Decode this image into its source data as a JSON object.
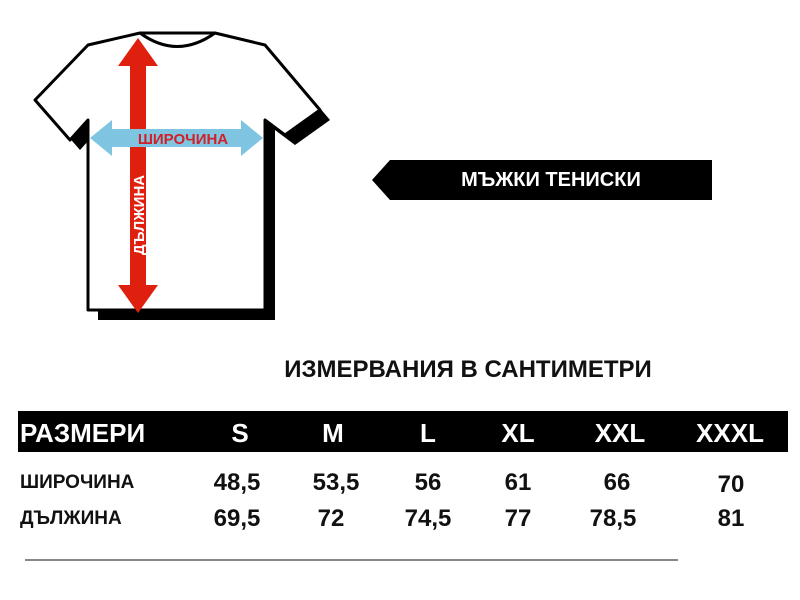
{
  "diagram": {
    "width_label": "ШИРОЧИНА",
    "length_label": "ДЪЛЖИНА",
    "colors": {
      "width_arrow": "#7fc4e0",
      "length_arrow": "#e0200f",
      "width_text": "#d0202a"
    }
  },
  "banner": {
    "label": "МЪЖКИ ТЕНИСКИ"
  },
  "table": {
    "title": "ИЗМЕРВАНИЯ В САНТИМЕТРИ",
    "header_label": "РАЗМЕРИ",
    "sizes": [
      "S",
      "M",
      "L",
      "XL",
      "XXL",
      "XXXL"
    ],
    "rows": [
      {
        "label": "ШИРОЧИНА",
        "values": [
          "48,5",
          "53,5",
          "56",
          "61",
          "66",
          "70"
        ]
      },
      {
        "label": "ДЪЛЖИНА",
        "values": [
          "69,5",
          "72",
          "74,5",
          "77",
          "78,5",
          "81"
        ]
      }
    ]
  }
}
